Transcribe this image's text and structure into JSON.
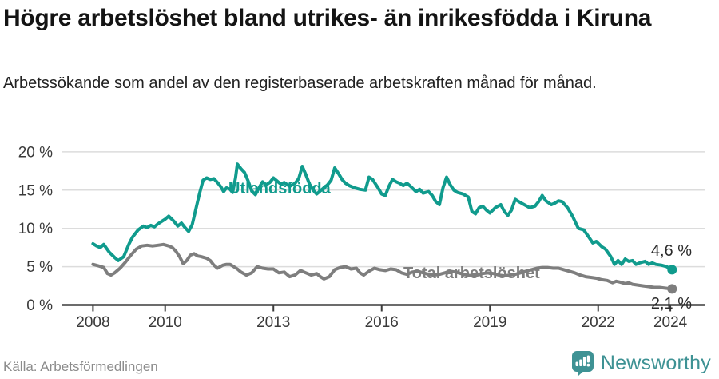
{
  "header": {
    "title": "Högre arbetslöshet bland utrikes- än inrikesfödda i Kiruna",
    "subtitle": "Arbetssökande som andel av den registerbaserade arbetskraften månad för månad."
  },
  "chart_data": {
    "type": "line",
    "unit": "%",
    "grid": true,
    "legend_position": "inline-labels",
    "x_range": [
      2007.15,
      2024.95
    ],
    "ylim": [
      0,
      20
    ],
    "grid_color": "#dcdcdc",
    "axis_color": "#3c3c3c",
    "x_ticks": [
      {
        "year": 2008,
        "label": "2008"
      },
      {
        "year": 2010,
        "label": "2010"
      },
      {
        "year": 2013,
        "label": "2013"
      },
      {
        "year": 2016,
        "label": "2016"
      },
      {
        "year": 2019,
        "label": "2019"
      },
      {
        "year": 2022,
        "label": "2022"
      },
      {
        "year": 2024,
        "label": "2024"
      }
    ],
    "y_ticks": [
      {
        "value": 0,
        "label": "0 %"
      },
      {
        "value": 5,
        "label": "5 %"
      },
      {
        "value": 10,
        "label": "10 %"
      },
      {
        "value": 15,
        "label": "15 %"
      },
      {
        "value": 20,
        "label": "20 %"
      }
    ],
    "series": [
      {
        "id": "utlandsfodda",
        "name": "Utlandsfödda",
        "color": "#109b8d",
        "end_value": 4.6,
        "end_label": "4,6 %",
        "points": [
          [
            2008.0,
            8.0
          ],
          [
            2008.1,
            7.7
          ],
          [
            2008.2,
            7.5
          ],
          [
            2008.3,
            7.9
          ],
          [
            2008.45,
            6.9
          ],
          [
            2008.6,
            6.2
          ],
          [
            2008.7,
            5.8
          ],
          [
            2008.85,
            6.3
          ],
          [
            2009.0,
            8.0
          ],
          [
            2009.1,
            8.9
          ],
          [
            2009.25,
            9.8
          ],
          [
            2009.4,
            10.3
          ],
          [
            2009.5,
            10.1
          ],
          [
            2009.6,
            10.4
          ],
          [
            2009.7,
            10.2
          ],
          [
            2009.8,
            10.6
          ],
          [
            2009.9,
            10.9
          ],
          [
            2010.0,
            11.2
          ],
          [
            2010.1,
            11.6
          ],
          [
            2010.25,
            10.9
          ],
          [
            2010.35,
            10.3
          ],
          [
            2010.45,
            10.7
          ],
          [
            2010.55,
            10.1
          ],
          [
            2010.65,
            9.6
          ],
          [
            2010.75,
            10.5
          ],
          [
            2010.85,
            12.5
          ],
          [
            2010.95,
            14.5
          ],
          [
            2011.05,
            16.3
          ],
          [
            2011.15,
            16.6
          ],
          [
            2011.25,
            16.4
          ],
          [
            2011.35,
            16.5
          ],
          [
            2011.45,
            16.0
          ],
          [
            2011.55,
            15.4
          ],
          [
            2011.62,
            14.8
          ],
          [
            2011.7,
            15.3
          ],
          [
            2011.8,
            15.1
          ],
          [
            2011.87,
            14.7
          ],
          [
            2011.95,
            16.6
          ],
          [
            2012.0,
            18.4
          ],
          [
            2012.1,
            17.8
          ],
          [
            2012.2,
            17.3
          ],
          [
            2012.3,
            16.2
          ],
          [
            2012.4,
            14.9
          ],
          [
            2012.5,
            14.4
          ],
          [
            2012.6,
            15.3
          ],
          [
            2012.7,
            16.1
          ],
          [
            2012.8,
            15.7
          ],
          [
            2012.9,
            16.0
          ],
          [
            2013.0,
            16.6
          ],
          [
            2013.1,
            16.2
          ],
          [
            2013.2,
            15.8
          ],
          [
            2013.3,
            16.0
          ],
          [
            2013.45,
            15.5
          ],
          [
            2013.6,
            15.9
          ],
          [
            2013.7,
            16.5
          ],
          [
            2013.8,
            18.1
          ],
          [
            2013.9,
            17.0
          ],
          [
            2014.0,
            15.8
          ],
          [
            2014.1,
            15.0
          ],
          [
            2014.2,
            14.5
          ],
          [
            2014.35,
            15.1
          ],
          [
            2014.5,
            15.7
          ],
          [
            2014.6,
            16.3
          ],
          [
            2014.7,
            17.9
          ],
          [
            2014.8,
            17.2
          ],
          [
            2014.9,
            16.4
          ],
          [
            2015.0,
            15.9
          ],
          [
            2015.1,
            15.6
          ],
          [
            2015.25,
            15.3
          ],
          [
            2015.4,
            15.1
          ],
          [
            2015.55,
            15.0
          ],
          [
            2015.65,
            16.7
          ],
          [
            2015.75,
            16.4
          ],
          [
            2015.9,
            15.3
          ],
          [
            2016.0,
            14.5
          ],
          [
            2016.1,
            14.3
          ],
          [
            2016.2,
            15.5
          ],
          [
            2016.3,
            16.4
          ],
          [
            2016.4,
            16.1
          ],
          [
            2016.5,
            15.9
          ],
          [
            2016.6,
            15.6
          ],
          [
            2016.7,
            15.9
          ],
          [
            2016.8,
            15.5
          ],
          [
            2016.95,
            14.8
          ],
          [
            2017.05,
            15.1
          ],
          [
            2017.15,
            14.6
          ],
          [
            2017.3,
            14.8
          ],
          [
            2017.4,
            14.3
          ],
          [
            2017.5,
            13.5
          ],
          [
            2017.6,
            13.1
          ],
          [
            2017.7,
            15.3
          ],
          [
            2017.8,
            16.7
          ],
          [
            2017.9,
            15.7
          ],
          [
            2018.0,
            15.0
          ],
          [
            2018.1,
            14.7
          ],
          [
            2018.25,
            14.5
          ],
          [
            2018.4,
            14.1
          ],
          [
            2018.5,
            12.2
          ],
          [
            2018.6,
            11.9
          ],
          [
            2018.7,
            12.7
          ],
          [
            2018.8,
            12.9
          ],
          [
            2018.9,
            12.4
          ],
          [
            2019.0,
            12.0
          ],
          [
            2019.15,
            12.7
          ],
          [
            2019.3,
            13.1
          ],
          [
            2019.4,
            12.2
          ],
          [
            2019.5,
            11.7
          ],
          [
            2019.6,
            12.4
          ],
          [
            2019.7,
            13.8
          ],
          [
            2019.8,
            13.5
          ],
          [
            2019.95,
            13.1
          ],
          [
            2020.1,
            12.7
          ],
          [
            2020.25,
            12.9
          ],
          [
            2020.35,
            13.5
          ],
          [
            2020.45,
            14.3
          ],
          [
            2020.55,
            13.6
          ],
          [
            2020.7,
            13.1
          ],
          [
            2020.8,
            13.3
          ],
          [
            2020.9,
            13.6
          ],
          [
            2021.0,
            13.5
          ],
          [
            2021.15,
            12.7
          ],
          [
            2021.3,
            11.5
          ],
          [
            2021.45,
            10.0
          ],
          [
            2021.6,
            9.8
          ],
          [
            2021.75,
            8.8
          ],
          [
            2021.85,
            8.1
          ],
          [
            2021.95,
            8.3
          ],
          [
            2022.1,
            7.6
          ],
          [
            2022.2,
            7.3
          ],
          [
            2022.35,
            6.3
          ],
          [
            2022.45,
            5.3
          ],
          [
            2022.55,
            5.8
          ],
          [
            2022.65,
            5.3
          ],
          [
            2022.75,
            6.0
          ],
          [
            2022.85,
            5.7
          ],
          [
            2022.95,
            5.8
          ],
          [
            2023.05,
            5.3
          ],
          [
            2023.15,
            5.5
          ],
          [
            2023.3,
            5.7
          ],
          [
            2023.4,
            5.3
          ],
          [
            2023.5,
            5.5
          ],
          [
            2023.6,
            5.3
          ],
          [
            2023.75,
            5.2
          ],
          [
            2023.9,
            5.0
          ],
          [
            2024.05,
            4.6
          ]
        ]
      },
      {
        "id": "total-arbetsloshet",
        "name": "Total arbetslöshet",
        "color": "#7e7e7e",
        "end_value": 2.1,
        "end_label": "2,1 %",
        "points": [
          [
            2008.0,
            5.3
          ],
          [
            2008.15,
            5.1
          ],
          [
            2008.3,
            4.9
          ],
          [
            2008.4,
            4.1
          ],
          [
            2008.5,
            3.9
          ],
          [
            2008.6,
            4.2
          ],
          [
            2008.75,
            4.8
          ],
          [
            2008.9,
            5.6
          ],
          [
            2009.05,
            6.5
          ],
          [
            2009.2,
            7.3
          ],
          [
            2009.35,
            7.7
          ],
          [
            2009.5,
            7.8
          ],
          [
            2009.65,
            7.7
          ],
          [
            2009.8,
            7.8
          ],
          [
            2009.95,
            7.9
          ],
          [
            2010.1,
            7.7
          ],
          [
            2010.2,
            7.5
          ],
          [
            2010.3,
            7.0
          ],
          [
            2010.4,
            6.3
          ],
          [
            2010.5,
            5.4
          ],
          [
            2010.6,
            5.8
          ],
          [
            2010.7,
            6.5
          ],
          [
            2010.8,
            6.7
          ],
          [
            2010.9,
            6.4
          ],
          [
            2011.0,
            6.3
          ],
          [
            2011.15,
            6.1
          ],
          [
            2011.25,
            5.8
          ],
          [
            2011.35,
            5.2
          ],
          [
            2011.45,
            4.8
          ],
          [
            2011.6,
            5.2
          ],
          [
            2011.7,
            5.3
          ],
          [
            2011.8,
            5.3
          ],
          [
            2011.9,
            5.0
          ],
          [
            2012.0,
            4.7
          ],
          [
            2012.1,
            4.3
          ],
          [
            2012.25,
            3.9
          ],
          [
            2012.4,
            4.2
          ],
          [
            2012.55,
            5.0
          ],
          [
            2012.7,
            4.8
          ],
          [
            2012.85,
            4.7
          ],
          [
            2013.0,
            4.7
          ],
          [
            2013.15,
            4.2
          ],
          [
            2013.3,
            4.3
          ],
          [
            2013.45,
            3.7
          ],
          [
            2013.6,
            3.9
          ],
          [
            2013.75,
            4.5
          ],
          [
            2013.9,
            4.2
          ],
          [
            2014.05,
            3.9
          ],
          [
            2014.2,
            4.1
          ],
          [
            2014.3,
            3.7
          ],
          [
            2014.4,
            3.4
          ],
          [
            2014.55,
            3.7
          ],
          [
            2014.7,
            4.6
          ],
          [
            2014.85,
            4.9
          ],
          [
            2015.0,
            5.0
          ],
          [
            2015.15,
            4.7
          ],
          [
            2015.3,
            4.8
          ],
          [
            2015.4,
            4.2
          ],
          [
            2015.5,
            3.9
          ],
          [
            2015.65,
            4.4
          ],
          [
            2015.8,
            4.8
          ],
          [
            2015.95,
            4.6
          ],
          [
            2016.1,
            4.5
          ],
          [
            2016.25,
            4.7
          ],
          [
            2016.4,
            4.6
          ],
          [
            2016.55,
            4.2
          ],
          [
            2016.7,
            4.0
          ],
          [
            2016.85,
            4.3
          ],
          [
            2017.0,
            4.4
          ],
          [
            2017.15,
            4.2
          ],
          [
            2017.3,
            4.0
          ],
          [
            2017.45,
            3.9
          ],
          [
            2017.6,
            4.0
          ],
          [
            2017.75,
            4.2
          ],
          [
            2017.9,
            4.4
          ],
          [
            2018.05,
            4.3
          ],
          [
            2018.2,
            4.1
          ],
          [
            2018.35,
            3.9
          ],
          [
            2018.5,
            3.8
          ],
          [
            2018.65,
            3.9
          ],
          [
            2018.8,
            4.1
          ],
          [
            2018.95,
            4.2
          ],
          [
            2019.1,
            4.1
          ],
          [
            2019.25,
            3.9
          ],
          [
            2019.4,
            3.8
          ],
          [
            2019.55,
            3.9
          ],
          [
            2019.7,
            4.0
          ],
          [
            2019.85,
            4.2
          ],
          [
            2020.0,
            4.4
          ],
          [
            2020.15,
            4.6
          ],
          [
            2020.3,
            4.8
          ],
          [
            2020.45,
            4.9
          ],
          [
            2020.6,
            4.9
          ],
          [
            2020.75,
            4.8
          ],
          [
            2020.9,
            4.8
          ],
          [
            2021.05,
            4.6
          ],
          [
            2021.2,
            4.4
          ],
          [
            2021.35,
            4.2
          ],
          [
            2021.5,
            3.9
          ],
          [
            2021.65,
            3.7
          ],
          [
            2021.8,
            3.6
          ],
          [
            2021.95,
            3.5
          ],
          [
            2022.1,
            3.3
          ],
          [
            2022.25,
            3.2
          ],
          [
            2022.4,
            2.9
          ],
          [
            2022.5,
            3.1
          ],
          [
            2022.6,
            3.0
          ],
          [
            2022.75,
            2.8
          ],
          [
            2022.85,
            2.9
          ],
          [
            2022.95,
            2.7
          ],
          [
            2023.1,
            2.6
          ],
          [
            2023.25,
            2.5
          ],
          [
            2023.4,
            2.4
          ],
          [
            2023.55,
            2.3
          ],
          [
            2023.7,
            2.3
          ],
          [
            2023.85,
            2.2
          ],
          [
            2024.05,
            2.1
          ]
        ]
      }
    ]
  },
  "footer": {
    "source": "Källa: Arbetsförmedlingen",
    "logo_text": "Newsworthy",
    "logo_icon": "bar-chart-speech-bubble-icon",
    "logo_color": "#3e9294"
  }
}
